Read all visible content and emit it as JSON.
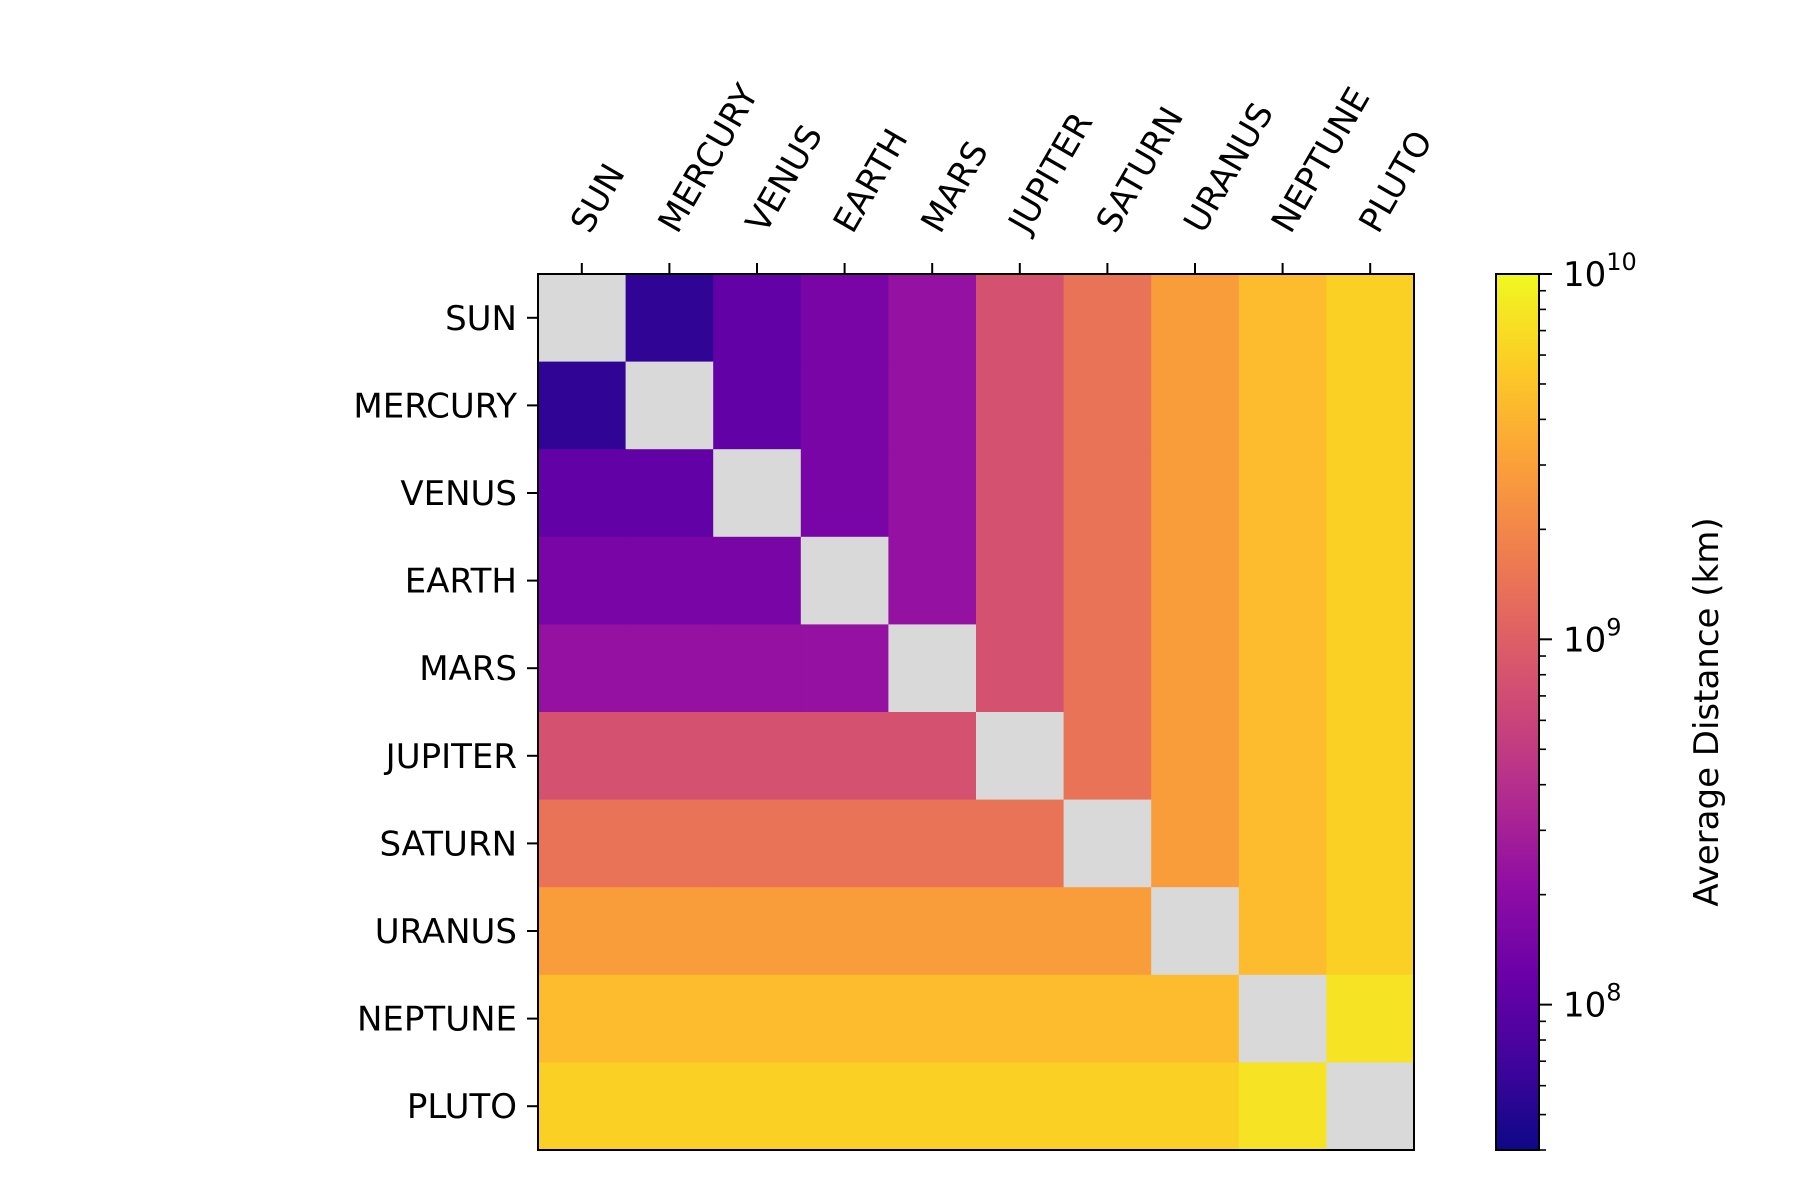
{
  "chart_data": {
    "type": "heatmap",
    "title": "",
    "xlabel": "",
    "ylabel": "",
    "x_categories": [
      "SUN",
      "MERCURY",
      "VENUS",
      "EARTH",
      "MARS",
      "JUPITER",
      "SATURN",
      "URANUS",
      "NEPTUNE",
      "PLUTO"
    ],
    "y_categories": [
      "SUN",
      "MERCURY",
      "VENUS",
      "EARTH",
      "MARS",
      "JUPITER",
      "SATURN",
      "URANUS",
      "NEPTUNE",
      "PLUTO"
    ],
    "x_tick_position": "top",
    "x_tick_rotation_deg": -60,
    "diagonal_color": "#d9d9d9",
    "colormap": "plasma",
    "color_scale": "log",
    "color_range": [
      40000000,
      10000000000
    ],
    "colorbar": {
      "label": "Average Distance (km)",
      "ticks": [
        {
          "value": 100000000,
          "base": "10",
          "exp": "8"
        },
        {
          "value": 1000000000,
          "base": "10",
          "exp": "9"
        },
        {
          "value": 10000000000,
          "base": "10",
          "exp": "10"
        }
      ],
      "minor_ticks": [
        40000000,
        50000000,
        60000000,
        70000000,
        80000000,
        90000000,
        200000000,
        300000000,
        400000000,
        500000000,
        600000000,
        700000000,
        800000000,
        900000000,
        2000000000,
        3000000000,
        4000000000,
        5000000000,
        6000000000,
        7000000000,
        8000000000,
        9000000000
      ]
    },
    "values_km": [
      [
        null,
        58000000,
        108000000,
        150000000,
        228000000,
        778000000,
        1430000000,
        2870000000,
        4500000000,
        5900000000
      ],
      [
        58000000,
        null,
        108000000,
        150000000,
        228000000,
        778000000,
        1430000000,
        2870000000,
        4500000000,
        5900000000
      ],
      [
        108000000,
        108000000,
        null,
        150000000,
        228000000,
        778000000,
        1430000000,
        2870000000,
        4500000000,
        5900000000
      ],
      [
        150000000,
        150000000,
        150000000,
        null,
        228000000,
        778000000,
        1430000000,
        2870000000,
        4500000000,
        5900000000
      ],
      [
        228000000,
        228000000,
        228000000,
        228000000,
        null,
        778000000,
        1430000000,
        2870000000,
        4500000000,
        5900000000
      ],
      [
        778000000,
        778000000,
        778000000,
        778000000,
        778000000,
        null,
        1430000000,
        2870000000,
        4500000000,
        5900000000
      ],
      [
        1430000000,
        1430000000,
        1430000000,
        1430000000,
        1430000000,
        1430000000,
        null,
        2870000000,
        4500000000,
        5900000000
      ],
      [
        2870000000,
        2870000000,
        2870000000,
        2870000000,
        2870000000,
        2870000000,
        2870000000,
        null,
        4500000000,
        5900000000
      ],
      [
        4500000000,
        4500000000,
        4500000000,
        4500000000,
        4500000000,
        4500000000,
        4500000000,
        4500000000,
        null,
        7500000000
      ],
      [
        5900000000,
        5900000000,
        5900000000,
        5900000000,
        5900000000,
        5900000000,
        5900000000,
        5900000000,
        7500000000,
        null
      ]
    ]
  }
}
